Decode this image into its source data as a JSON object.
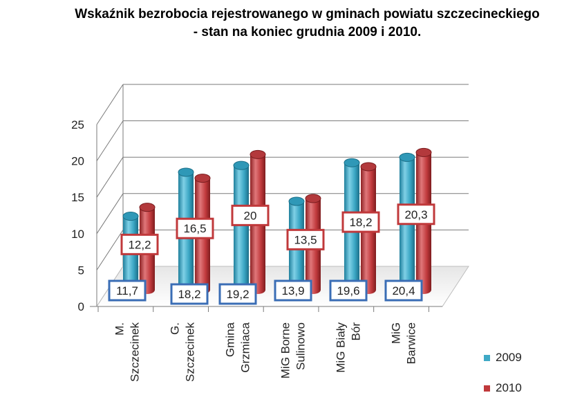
{
  "chart_data": {
    "type": "bar",
    "title_line1": "Wskaźnik bezrobocia rejestrowanego w gminach powiatu szczecineckiego",
    "title_line2": "- stan na koniec grudnia 2009 i 2010.",
    "categories": [
      [
        "M.",
        "Szczecinek"
      ],
      [
        "G.",
        "Szczecinek"
      ],
      [
        "Gmina",
        "Grzmiaca"
      ],
      [
        "MiG Borne",
        "Sulinowo"
      ],
      [
        "MiG Biały",
        "Bór"
      ],
      [
        "MiG",
        "Barwice"
      ]
    ],
    "series": [
      {
        "name": "2009",
        "color": "#3fa9c6",
        "values": [
          11.7,
          18.2,
          19.2,
          13.9,
          19.6,
          20.4
        ],
        "labels": [
          "11,7",
          "18,2",
          "19,2",
          "13,9",
          "19,6",
          "20,4"
        ]
      },
      {
        "name": "2010",
        "color": "#c0393b",
        "values": [
          12.2,
          16.5,
          20,
          13.5,
          18.2,
          20.3
        ],
        "labels": [
          "12,2",
          "16,5",
          "20",
          "13,5",
          "18,2",
          "20,3"
        ]
      }
    ],
    "yticks": [
      "0",
      "5",
      "10",
      "15",
      "20",
      "25"
    ],
    "ylim": [
      0,
      25
    ],
    "xlabel": "",
    "ylabel": "",
    "legend_position": "bottom-right"
  }
}
